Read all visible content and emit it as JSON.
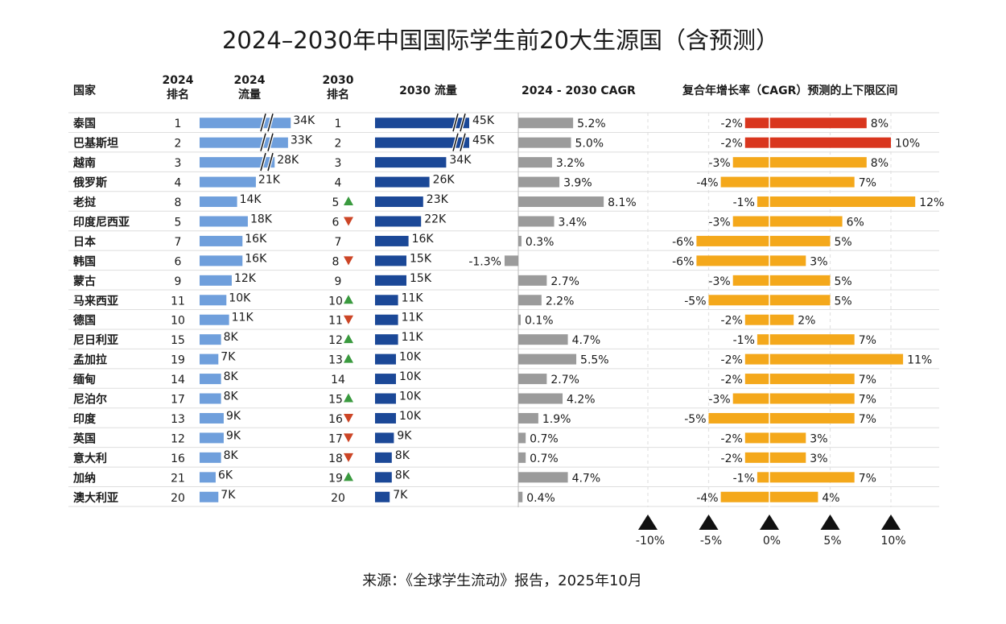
{
  "chart_data": {
    "type": "table",
    "title": "2024–2030年中国国际学生前20大生源国（含预测）",
    "source": "来源：《全球学生流动》报告，2025年10月",
    "headers": {
      "country": "国家",
      "rank2024": [
        "2024",
        "排名"
      ],
      "flow2024": [
        "2024",
        "流量"
      ],
      "rank2030": [
        "2030",
        "排名"
      ],
      "flow2030": "2030 流量",
      "cagr": "2024 - 2030 CAGR",
      "range": "复合年增长率（CAGR）预测的上下限区间"
    },
    "range_axis": {
      "ticks": [
        -10,
        -5,
        0,
        5,
        10
      ],
      "tick_labels": [
        "-10%",
        "-5%",
        "0%",
        "5%",
        "10%"
      ]
    },
    "colors": {
      "flow2024": "#6f9fdc",
      "flow2030": "#1b4897",
      "cagr": "#9b9b9b",
      "range_highlight": "#d9361e",
      "range": "#f4a81b",
      "rank_up": "#3a9a3f",
      "rank_down": "#cc4526"
    },
    "rows": [
      {
        "country": "泰国",
        "rank2024": "1",
        "flow2024": 34,
        "flow2024_label": "34K",
        "rank2030": "1",
        "change": "",
        "flow2030": 45,
        "flow2030_label": "45K",
        "cagr": 5.2,
        "cagr_label": "5.2%",
        "low": -2,
        "high": 8,
        "low_label": "-2%",
        "high_label": "8%",
        "highlight": true,
        "broken2024": true,
        "broken2030": true
      },
      {
        "country": "巴基斯坦",
        "rank2024": "2",
        "flow2024": 33,
        "flow2024_label": "33K",
        "rank2030": "2",
        "change": "",
        "flow2030": 45,
        "flow2030_label": "45K",
        "cagr": 5.0,
        "cagr_label": "5.0%",
        "low": -2,
        "high": 10,
        "low_label": "-2%",
        "high_label": "10%",
        "highlight": true,
        "broken2024": true,
        "broken2030": true
      },
      {
        "country": "越南",
        "rank2024": "3",
        "flow2024": 28,
        "flow2024_label": "28K",
        "rank2030": "3",
        "change": "",
        "flow2030": 34,
        "flow2030_label": "34K",
        "cagr": 3.2,
        "cagr_label": "3.2%",
        "low": -3,
        "high": 8,
        "low_label": "-3%",
        "high_label": "8%",
        "highlight": false,
        "broken2024": true,
        "broken2030": false
      },
      {
        "country": "俄罗斯",
        "rank2024": "4",
        "flow2024": 21,
        "flow2024_label": "21K",
        "rank2030": "4",
        "change": "",
        "flow2030": 26,
        "flow2030_label": "26K",
        "cagr": 3.9,
        "cagr_label": "3.9%",
        "low": -4,
        "high": 7,
        "low_label": "-4%",
        "high_label": "7%"
      },
      {
        "country": "老挝",
        "rank2024": "8",
        "flow2024": 14,
        "flow2024_label": "14K",
        "rank2030": "5",
        "change": "up",
        "flow2030": 23,
        "flow2030_label": "23K",
        "cagr": 8.1,
        "cagr_label": "8.1%",
        "low": -1,
        "high": 12,
        "low_label": "-1%",
        "high_label": "12%"
      },
      {
        "country": "印度尼西亚",
        "rank2024": "5",
        "flow2024": 18,
        "flow2024_label": "18K",
        "rank2030": "6",
        "change": "down",
        "flow2030": 22,
        "flow2030_label": "22K",
        "cagr": 3.4,
        "cagr_label": "3.4%",
        "low": -3,
        "high": 6,
        "low_label": "-3%",
        "high_label": "6%"
      },
      {
        "country": "日本",
        "rank2024": "7",
        "flow2024": 16,
        "flow2024_label": "16K",
        "rank2030": "7",
        "change": "",
        "flow2030": 16,
        "flow2030_label": "16K",
        "cagr": 0.3,
        "cagr_label": "0.3%",
        "low": -6,
        "high": 5,
        "low_label": "-6%",
        "high_label": "5%"
      },
      {
        "country": "韩国",
        "rank2024": "6",
        "flow2024": 16,
        "flow2024_label": "16K",
        "rank2030": "8",
        "change": "down",
        "flow2030": 15,
        "flow2030_label": "15K",
        "cagr": -1.3,
        "cagr_label": "-1.3%",
        "low": -6,
        "high": 3,
        "low_label": "-6%",
        "high_label": "3%"
      },
      {
        "country": "蒙古",
        "rank2024": "9",
        "flow2024": 12,
        "flow2024_label": "12K",
        "rank2030": "9",
        "change": "",
        "flow2030": 15,
        "flow2030_label": "15K",
        "cagr": 2.7,
        "cagr_label": "2.7%",
        "low": -3,
        "high": 5,
        "low_label": "-3%",
        "high_label": "5%"
      },
      {
        "country": "马来西亚",
        "rank2024": "11",
        "flow2024": 10,
        "flow2024_label": "10K",
        "rank2030": "10",
        "change": "up",
        "flow2030": 11,
        "flow2030_label": "11K",
        "cagr": 2.2,
        "cagr_label": "2.2%",
        "low": -5,
        "high": 5,
        "low_label": "-5%",
        "high_label": "5%"
      },
      {
        "country": "德国",
        "rank2024": "10",
        "flow2024": 11,
        "flow2024_label": "11K",
        "rank2030": "11",
        "change": "down",
        "flow2030": 11,
        "flow2030_label": "11K",
        "cagr": 0.1,
        "cagr_label": "0.1%",
        "low": -2,
        "high": 2,
        "low_label": "-2%",
        "high_label": "2%"
      },
      {
        "country": "尼日利亚",
        "rank2024": "15",
        "flow2024": 8,
        "flow2024_label": "8K",
        "rank2030": "12",
        "change": "up",
        "flow2030": 11,
        "flow2030_label": "11K",
        "cagr": 4.7,
        "cagr_label": "4.7%",
        "low": -1,
        "high": 7,
        "low_label": "-1%",
        "high_label": "7%"
      },
      {
        "country": "孟加拉",
        "rank2024": "19",
        "flow2024": 7,
        "flow2024_label": "7K",
        "rank2030": "13",
        "change": "up",
        "flow2030": 10,
        "flow2030_label": "10K",
        "cagr": 5.5,
        "cagr_label": "5.5%",
        "low": -2,
        "high": 11,
        "low_label": "-2%",
        "high_label": "11%"
      },
      {
        "country": "缅甸",
        "rank2024": "14",
        "flow2024": 8,
        "flow2024_label": "8K",
        "rank2030": "14",
        "change": "",
        "flow2030": 10,
        "flow2030_label": "10K",
        "cagr": 2.7,
        "cagr_label": "2.7%",
        "low": -2,
        "high": 7,
        "low_label": "-2%",
        "high_label": "7%"
      },
      {
        "country": "尼泊尔",
        "rank2024": "17",
        "flow2024": 8,
        "flow2024_label": "8K",
        "rank2030": "15",
        "change": "up",
        "flow2030": 10,
        "flow2030_label": "10K",
        "cagr": 4.2,
        "cagr_label": "4.2%",
        "low": -3,
        "high": 7,
        "low_label": "-3%",
        "high_label": "7%"
      },
      {
        "country": "印度",
        "rank2024": "13",
        "flow2024": 9,
        "flow2024_label": "9K",
        "rank2030": "16",
        "change": "down",
        "flow2030": 10,
        "flow2030_label": "10K",
        "cagr": 1.9,
        "cagr_label": "1.9%",
        "low": -5,
        "high": 7,
        "low_label": "-5%",
        "high_label": "7%"
      },
      {
        "country": "英国",
        "rank2024": "12",
        "flow2024": 9,
        "flow2024_label": "9K",
        "rank2030": "17",
        "change": "down",
        "flow2030": 9,
        "flow2030_label": "9K",
        "cagr": 0.7,
        "cagr_label": "0.7%",
        "low": -2,
        "high": 3,
        "low_label": "-2%",
        "high_label": "3%"
      },
      {
        "country": "意大利",
        "rank2024": "16",
        "flow2024": 8,
        "flow2024_label": "8K",
        "rank2030": "18",
        "change": "down",
        "flow2030": 8,
        "flow2030_label": "8K",
        "cagr": 0.7,
        "cagr_label": "0.7%",
        "low": -2,
        "high": 3,
        "low_label": "-2%",
        "high_label": "3%"
      },
      {
        "country": "加纳",
        "rank2024": "21",
        "flow2024": 6,
        "flow2024_label": "6K",
        "rank2030": "19",
        "change": "up",
        "flow2030": 8,
        "flow2030_label": "8K",
        "cagr": 4.7,
        "cagr_label": "4.7%",
        "low": -1,
        "high": 7,
        "low_label": "-1%",
        "high_label": "7%"
      },
      {
        "country": "澳大利亚",
        "rank2024": "20",
        "flow2024": 7,
        "flow2024_label": "7K",
        "rank2030": "20",
        "change": "",
        "flow2030": 7,
        "flow2030_label": "7K",
        "cagr": 0.4,
        "cagr_label": "0.4%",
        "low": -4,
        "high": 4,
        "low_label": "-4%",
        "high_label": "4%"
      }
    ]
  }
}
